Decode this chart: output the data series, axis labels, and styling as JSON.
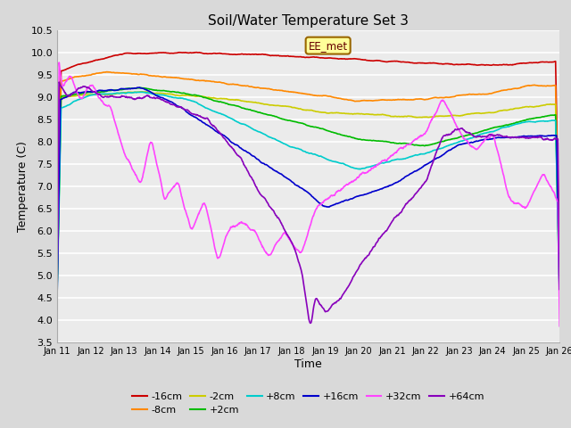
{
  "title": "Soil/Water Temperature Set 3",
  "xlabel": "Time",
  "ylabel": "Temperature (C)",
  "ylim": [
    3.5,
    10.5
  ],
  "xlim": [
    0,
    15
  ],
  "x_tick_labels": [
    "Jan 11",
    "Jan 12",
    "Jan 13",
    "Jan 14",
    "Jan 15",
    "Jan 16",
    "Jan 17",
    "Jan 18",
    "Jan 19",
    "Jan 20",
    "Jan 21",
    "Jan 22",
    "Jan 23",
    "Jan 24",
    "Jan 25",
    "Jan 26"
  ],
  "background_color": "#d9d9d9",
  "plot_bg_color": "#ebebeb",
  "grid_color": "#ffffff",
  "colors": {
    "-16cm": "#cc0000",
    "-8cm": "#ff8800",
    "-2cm": "#cccc00",
    "+2cm": "#00bb00",
    "+8cm": "#00cccc",
    "+16cm": "#0000cc",
    "+32cm": "#ff44ff",
    "+64cm": "#8800bb"
  },
  "legend_order": [
    "-16cm",
    "-8cm",
    "-2cm",
    "+2cm",
    "+8cm",
    "+16cm",
    "+32cm",
    "+64cm"
  ]
}
